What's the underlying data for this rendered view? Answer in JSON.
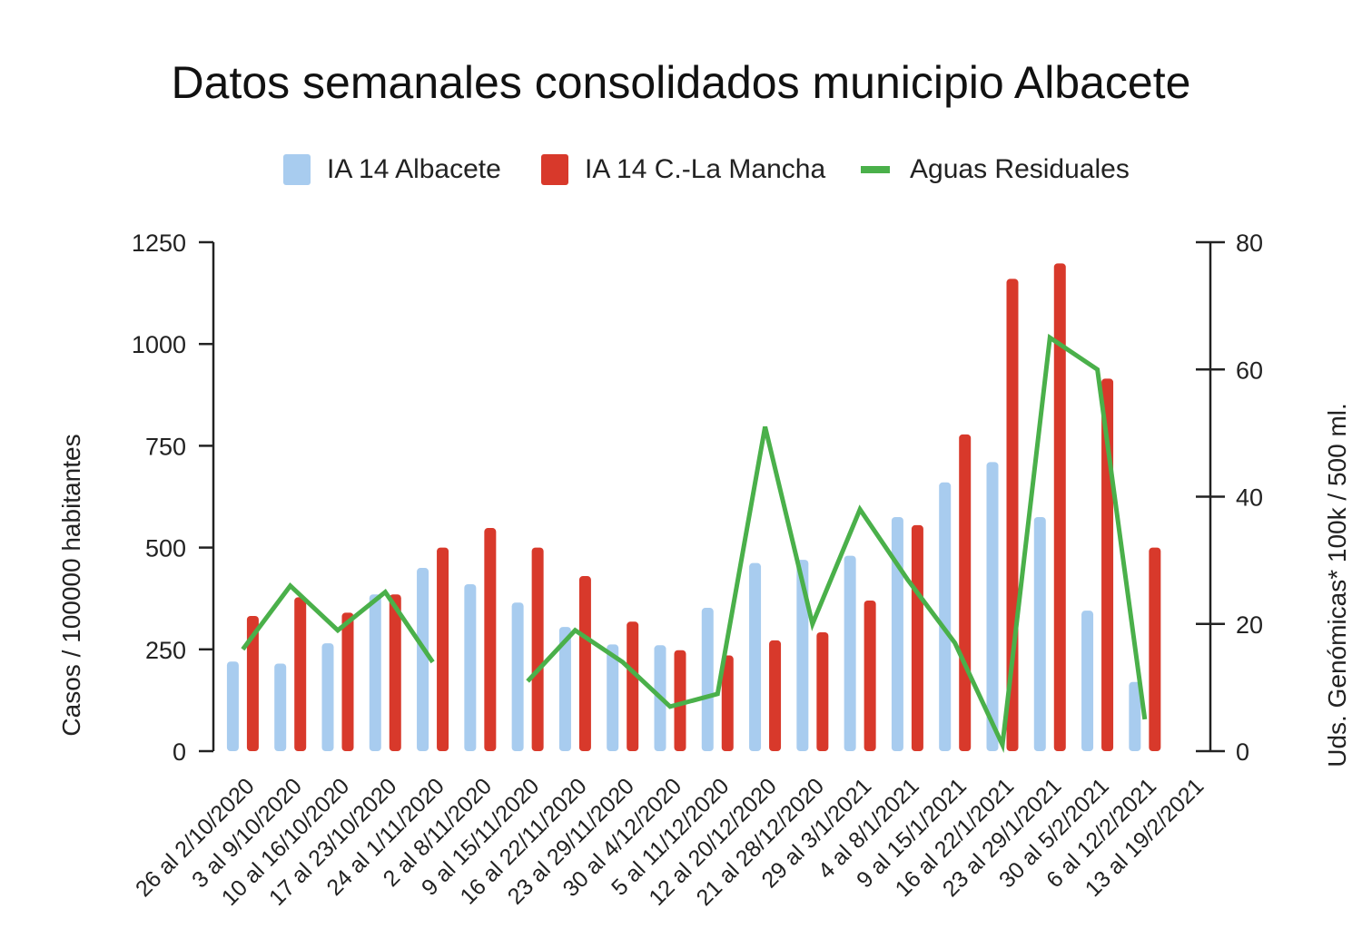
{
  "chart_data": {
    "type": "bar",
    "title": "Datos semanales consolidados municipio Albacete",
    "categories": [
      "26 al 2/10/2020",
      "3 al 9/10/2020",
      "10 al 16/10/2020",
      "17 al 23/10/2020",
      "24 al 1/11/2020",
      "2 al 8/11/2020",
      "9 al 15/11/2020",
      "16 al 22/11/2020",
      "23 al 29/11/2020",
      "30 al 4/12/2020",
      "5 al 11/12/2020",
      "12 al 20/12/2020",
      "21 al 28/12/2020",
      "29 al 3/1/2021",
      "4 al 8/1/2021",
      "9 al 15/1/2021",
      "16 al 22/1/2021",
      "23 al 29/1/2021",
      "30 al 5/2/2021",
      "6 al 12/2/2021",
      "13 al 19/2/2021"
    ],
    "series": [
      {
        "name": "IA 14 Albacete",
        "type": "bar",
        "axis": "left",
        "color": "#a8ccef",
        "values": [
          220,
          215,
          265,
          385,
          450,
          410,
          365,
          305,
          262,
          260,
          352,
          462,
          470,
          480,
          575,
          660,
          710,
          575,
          345,
          170,
          null
        ]
      },
      {
        "name": "IA 14 C.-La Mancha",
        "type": "bar",
        "axis": "left",
        "color": "#d8392b",
        "values": [
          332,
          378,
          340,
          385,
          500,
          548,
          500,
          430,
          318,
          248,
          235,
          272,
          292,
          370,
          555,
          778,
          1160,
          1198,
          915,
          500,
          null
        ]
      },
      {
        "name": "Aguas Residuales",
        "type": "line",
        "axis": "right",
        "color": "#4ab04a",
        "values": [
          16,
          26,
          19,
          25,
          14,
          null,
          11,
          19,
          14,
          7,
          9,
          51,
          20,
          38,
          27,
          17,
          1,
          65,
          60,
          5,
          null
        ]
      }
    ],
    "y_left": {
      "label": "Casos / 100000 habitantes",
      "range": [
        0,
        1250
      ],
      "ticks": [
        0,
        250,
        500,
        750,
        1000,
        1250
      ]
    },
    "y_right": {
      "label": "Uds. Genómicas* 100k / 500 ml.",
      "range": [
        0,
        80
      ],
      "ticks": [
        0,
        20,
        40,
        60,
        80
      ]
    },
    "grid": false,
    "legend_position": "top-center"
  }
}
